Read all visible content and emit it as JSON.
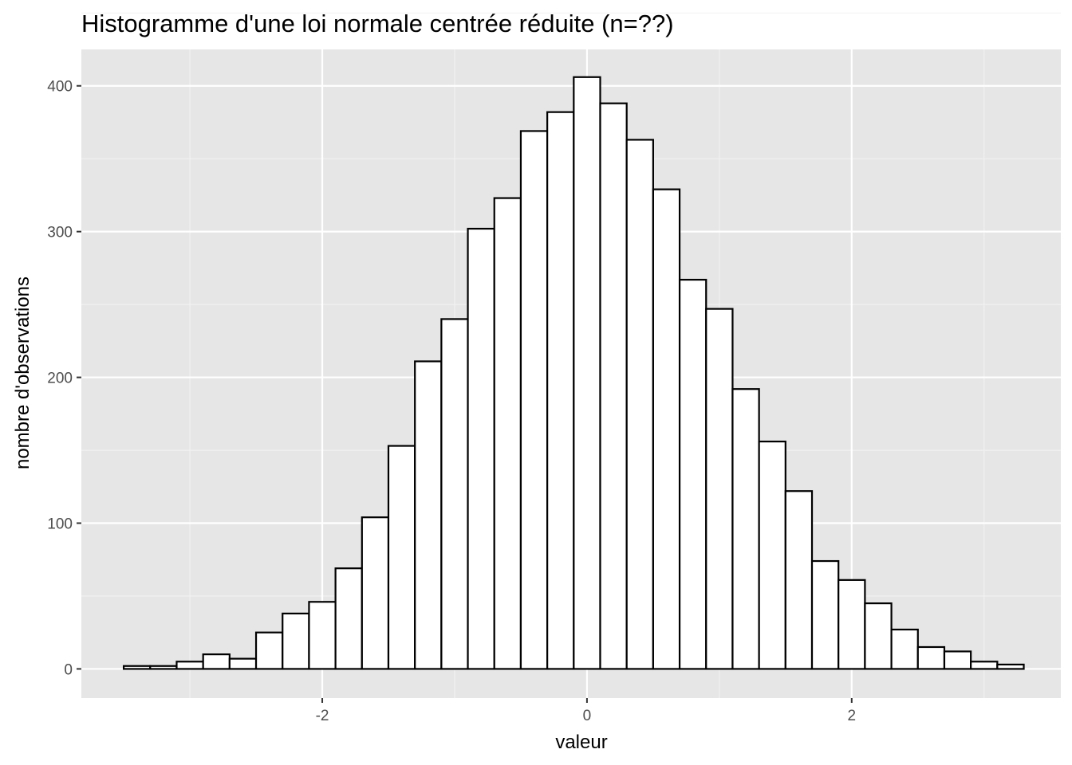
{
  "chart_data": {
    "type": "bar",
    "title": "Histogramme d'une loi normale centrée réduite (n=??)",
    "xlabel": "valeur",
    "ylabel": "nombre d'observations",
    "xlim": [
      -3.82,
      3.58
    ],
    "ylim": [
      -20,
      425
    ],
    "x_ticks": [
      -2,
      0,
      2
    ],
    "x_tick_labels": [
      "-2",
      "0",
      "2"
    ],
    "y_ticks": [
      0,
      100,
      200,
      300,
      400
    ],
    "y_tick_labels": [
      "0",
      "100",
      "200",
      "300",
      "400"
    ],
    "grid": true,
    "bin_width": 0.2,
    "bin_centers": [
      -3.4,
      -3.2,
      -3.0,
      -2.8,
      -2.6,
      -2.4,
      -2.2,
      -2.0,
      -1.8,
      -1.6,
      -1.4,
      -1.2,
      -1.0,
      -0.8,
      -0.6,
      -0.4,
      -0.2,
      0.0,
      0.2,
      0.4,
      0.6,
      0.8,
      1.0,
      1.2,
      1.4,
      1.6,
      1.8,
      2.0,
      2.2,
      2.4,
      2.6,
      2.8,
      3.0,
      3.2
    ],
    "values": [
      2,
      2,
      5,
      10,
      7,
      25,
      38,
      46,
      69,
      104,
      153,
      211,
      240,
      302,
      323,
      369,
      382,
      406,
      388,
      363,
      329,
      267,
      247,
      192,
      156,
      122,
      74,
      61,
      45,
      27,
      15,
      12,
      5,
      3
    ],
    "colors": {
      "panel": "#e6e6e6",
      "grid_major": "#ffffff",
      "grid_minor": "#f2f2f2",
      "bar_fill": "#ffffff",
      "bar_stroke": "#000000",
      "tick": "#333333"
    }
  }
}
